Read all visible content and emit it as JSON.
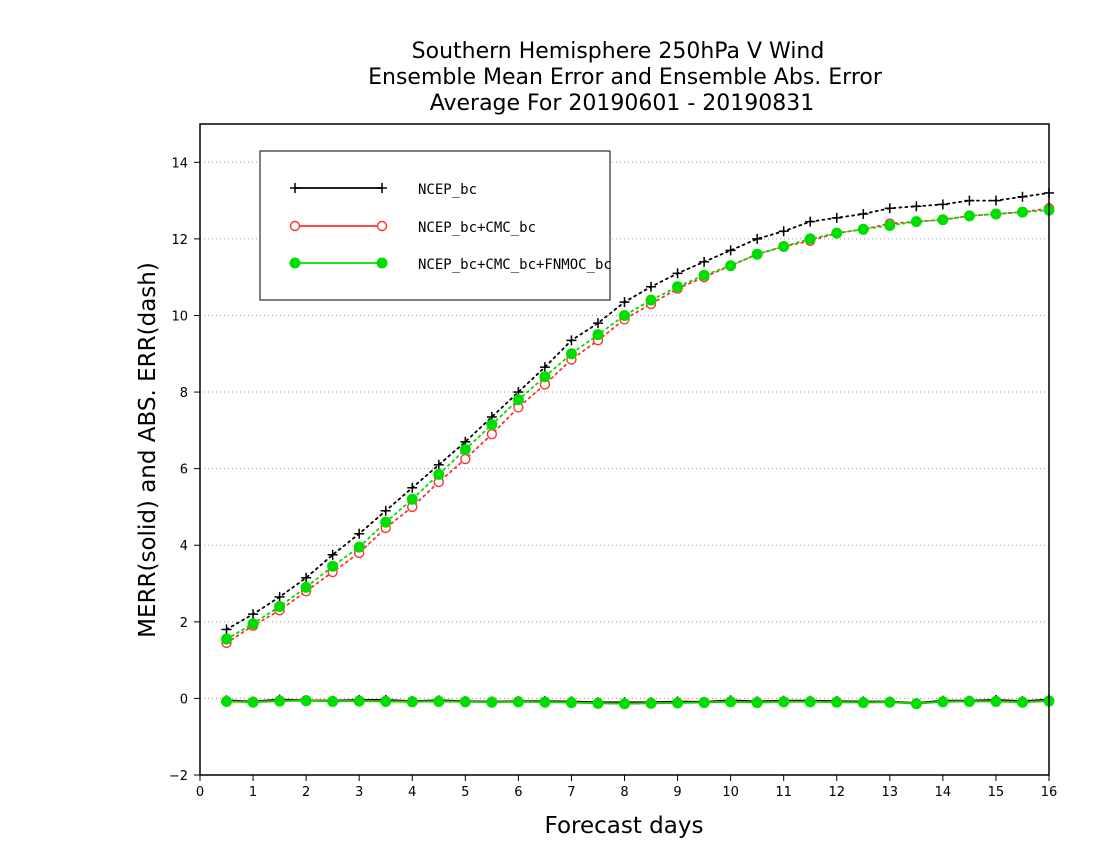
{
  "chart_data": {
    "type": "line",
    "title_lines": [
      "Southern Hemisphere 250hPa V Wind",
      "Ensemble Mean Error and Ensemble Abs. Error",
      "Average For 20190601 - 20190831"
    ],
    "xlabel": "Forecast days",
    "ylabel": "MERR(solid) and ABS. ERR(dash)",
    "xlim": [
      0,
      16
    ],
    "ylim": [
      -2,
      15
    ],
    "xticks": [
      0,
      1,
      2,
      3,
      4,
      5,
      6,
      7,
      8,
      9,
      10,
      11,
      12,
      13,
      14,
      15,
      16
    ],
    "yticks": [
      -2,
      0,
      2,
      4,
      6,
      8,
      10,
      12,
      14
    ],
    "grid": "dotted horizontal at y ticks",
    "legend_position": "top-left",
    "x": [
      0.5,
      1,
      1.5,
      2,
      2.5,
      3,
      3.5,
      4,
      4.5,
      5,
      5.5,
      6,
      6.5,
      7,
      7.5,
      8,
      8.5,
      9,
      9.5,
      10,
      10.5,
      11,
      11.5,
      12,
      12.5,
      13,
      13.5,
      14,
      14.5,
      15,
      15.5,
      16
    ],
    "series": [
      {
        "name": "NCEP_bc",
        "color": "#000000",
        "marker": "plus",
        "abs_err": [
          1.8,
          2.2,
          2.65,
          3.15,
          3.75,
          4.3,
          4.9,
          5.5,
          6.1,
          6.7,
          7.35,
          8.0,
          8.65,
          9.35,
          9.8,
          10.35,
          10.75,
          11.1,
          11.4,
          11.7,
          12.0,
          12.2,
          12.45,
          12.55,
          12.65,
          12.8,
          12.85,
          12.9,
          13.0,
          13.0,
          13.1,
          13.2
        ],
        "mean_err": [
          -0.05,
          -0.08,
          -0.03,
          -0.05,
          -0.06,
          -0.04,
          -0.04,
          -0.07,
          -0.05,
          -0.07,
          -0.08,
          -0.07,
          -0.07,
          -0.08,
          -0.1,
          -0.1,
          -0.1,
          -0.08,
          -0.09,
          -0.05,
          -0.08,
          -0.06,
          -0.06,
          -0.07,
          -0.08,
          -0.08,
          -0.12,
          -0.06,
          -0.06,
          -0.04,
          -0.07,
          -0.03
        ]
      },
      {
        "name": "NCEP_bc+CMC_bc",
        "color": "#ff3030",
        "marker": "open-circle",
        "abs_err": [
          1.45,
          1.9,
          2.3,
          2.8,
          3.3,
          3.8,
          4.45,
          5.0,
          5.65,
          6.25,
          6.9,
          7.6,
          8.2,
          8.85,
          9.35,
          9.9,
          10.3,
          10.7,
          11.0,
          11.3,
          11.6,
          11.8,
          11.95,
          12.15,
          12.25,
          12.4,
          12.45,
          12.5,
          12.6,
          12.65,
          12.7,
          12.8
        ],
        "mean_err": [
          -0.07,
          -0.09,
          -0.06,
          -0.05,
          -0.07,
          -0.06,
          -0.07,
          -0.08,
          -0.07,
          -0.08,
          -0.09,
          -0.08,
          -0.09,
          -0.1,
          -0.12,
          -0.13,
          -0.12,
          -0.11,
          -0.1,
          -0.08,
          -0.1,
          -0.08,
          -0.08,
          -0.09,
          -0.1,
          -0.09,
          -0.13,
          -0.08,
          -0.07,
          -0.07,
          -0.09,
          -0.06
        ]
      },
      {
        "name": "NCEP_bc+CMC_bc+FNMOC_bc",
        "color": "#00dd00",
        "marker": "filled-circle",
        "abs_err": [
          1.55,
          1.95,
          2.4,
          2.9,
          3.45,
          3.95,
          4.6,
          5.2,
          5.85,
          6.5,
          7.15,
          7.8,
          8.4,
          9.0,
          9.5,
          10.0,
          10.4,
          10.75,
          11.05,
          11.3,
          11.6,
          11.8,
          12.0,
          12.15,
          12.25,
          12.35,
          12.45,
          12.5,
          12.6,
          12.65,
          12.7,
          12.75
        ],
        "mean_err": [
          -0.08,
          -0.1,
          -0.07,
          -0.06,
          -0.08,
          -0.07,
          -0.08,
          -0.09,
          -0.08,
          -0.09,
          -0.1,
          -0.09,
          -0.1,
          -0.11,
          -0.13,
          -0.14,
          -0.13,
          -0.12,
          -0.11,
          -0.09,
          -0.11,
          -0.09,
          -0.09,
          -0.1,
          -0.11,
          -0.1,
          -0.14,
          -0.09,
          -0.08,
          -0.08,
          -0.1,
          -0.07
        ]
      }
    ]
  }
}
